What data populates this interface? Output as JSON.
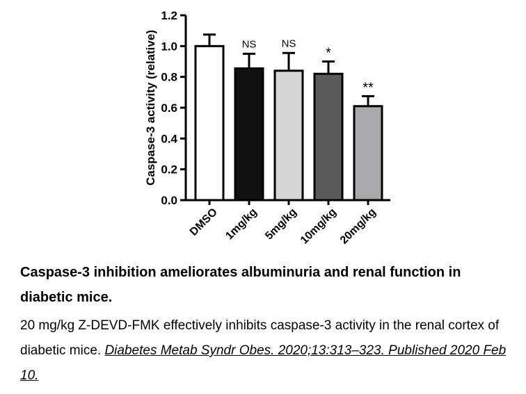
{
  "chart_data": {
    "type": "bar",
    "ylabel": "Caspase-3 activity (relative)",
    "ylim": [
      0,
      1.2
    ],
    "yticks": [
      "0.0",
      "0.2",
      "0.4",
      "0.6",
      "0.8",
      "1.0",
      "1.2"
    ],
    "categories": [
      "DMSO",
      "1mg/kg",
      "5mg/kg",
      "10mg/kg",
      "20mg/kg"
    ],
    "values": [
      1.0,
      0.855,
      0.84,
      0.82,
      0.61
    ],
    "errors": [
      0.075,
      0.095,
      0.115,
      0.08,
      0.065
    ],
    "significance": [
      "",
      "NS",
      "NS",
      "*",
      "**"
    ],
    "bar_colors": [
      "#ffffff",
      "#111111",
      "#d4d7d4",
      "#5a5a5a",
      "#a9a9ad"
    ],
    "grid": false,
    "legend": "none"
  },
  "caption": {
    "title": "Caspase-3 inhibition ameliorates albuminuria and renal function in diabetic mice.",
    "body": "20 mg/kg Z-DEVD-FMK effectively inhibits caspase-3 activity in the renal cortex of diabetic mice.",
    "citation": "Diabetes Metab Syndr Obes. 2020;13:313–323. Published 2020 Feb 10."
  }
}
